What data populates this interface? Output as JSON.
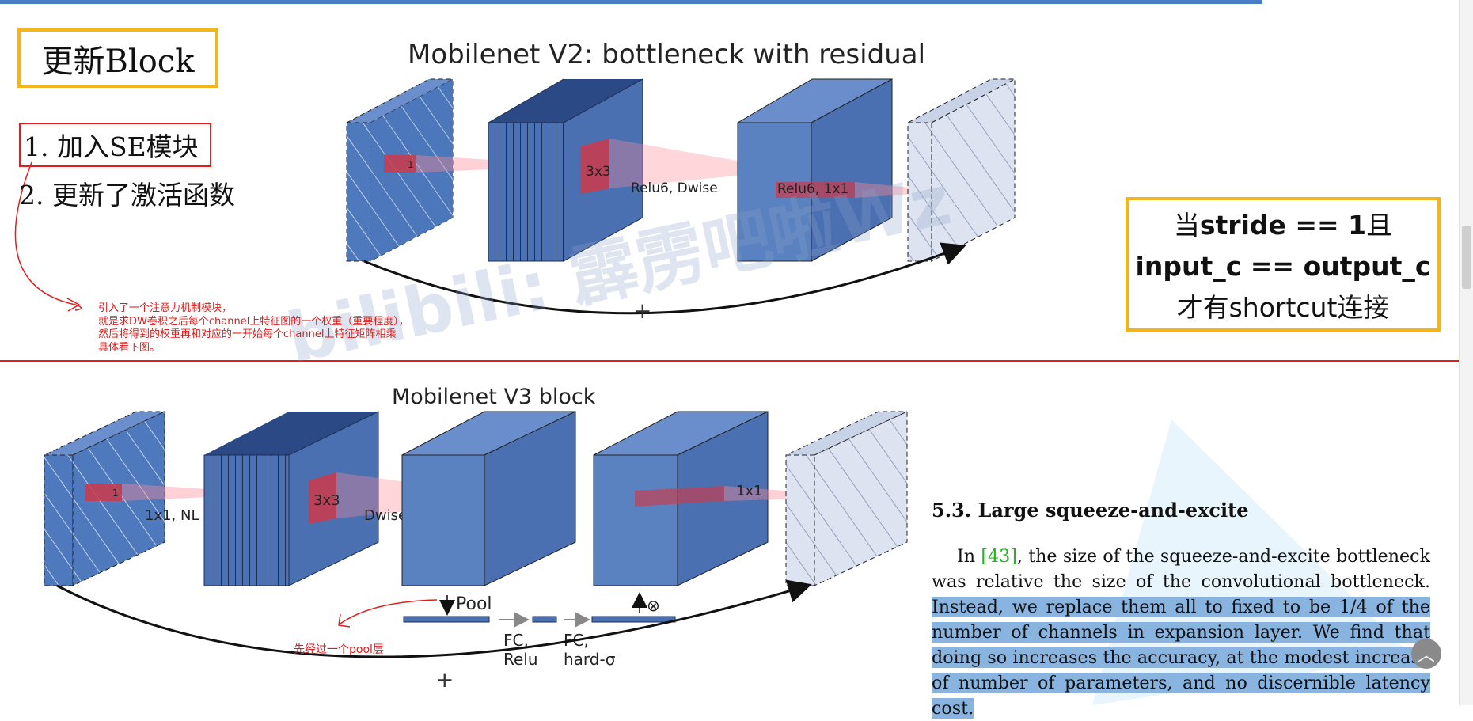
{
  "notes": {
    "update_block": "更新Block",
    "item1": "1. 加入SE模块",
    "item2": "2. 更新了激活函数",
    "se_note_lines": [
      "引入了一个注意力机制模块，",
      "就是求DW卷积之后每个channel上特征图的一个权重（重要程度），",
      "然后将得到的权重再和对应的一开始每个channel上特征矩阵相乘",
      "具体看下图。"
    ],
    "pool_note": "先经过一个pool层"
  },
  "stride_box": {
    "line1_a": "当",
    "line1_b": "stride == 1",
    "line1_c": "且",
    "line2": "input_c == output_c",
    "line3": "才有shortcut连接"
  },
  "v2": {
    "title": "Mobilenet V2: bottleneck with residual",
    "k1": "1",
    "k3": "3x3",
    "dwise": "Relu6, Dwise",
    "proj": "Relu6, 1x1",
    "plus": "+"
  },
  "v3": {
    "title": "Mobilenet V3 block",
    "k1": "1",
    "expand": "1x1, NL",
    "k3": "3x3",
    "dwise": "Dwise, NL",
    "proj": "1x1",
    "pool": "Pool",
    "fc1a": "FC,",
    "fc1b": "Relu",
    "fc2a": "FC,",
    "fc2b": "hard-σ",
    "mult": "⊗",
    "plus": "+"
  },
  "watermark": "bilibili: 霹雳吧啦Wz",
  "paper": {
    "heading": "5.3. Large squeeze-and-excite",
    "p_in": "In ",
    "cite": "[43]",
    "p_rest": ", the size of the squeeze-and-excite bottleneck was relative the size of the convolutional bottleneck. ",
    "p_highlight": "Instead, we replace them all to fixed to be 1/4 of the number of channels in expansion layer. We find that doing so increases the accuracy, at the modest increase of number of parameters, and no discernible latency cost."
  },
  "colors": {
    "block_front": "#5a81c0",
    "block_side": "#3f66ad",
    "hatch_bg": "#dde3f0",
    "accent_red": "#e21d1d",
    "box_yellow": "#f2b61c",
    "highlight": "#8ab4e0"
  },
  "icons": {
    "scroll_up": "chevron-up-icon"
  }
}
